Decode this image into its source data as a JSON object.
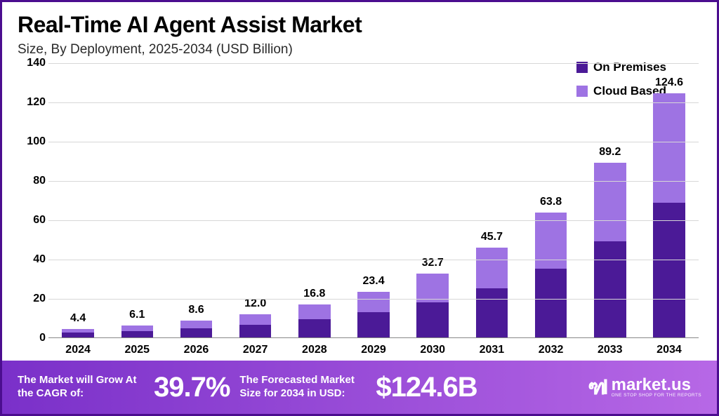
{
  "title": "Real-Time AI Agent Assist Market",
  "subtitle": "Size, By Deployment, 2025-2034 (USD Billion)",
  "chart": {
    "type": "stacked-bar",
    "ylim": [
      0,
      140
    ],
    "ytick_step": 20,
    "yticks": [
      0,
      20,
      40,
      60,
      80,
      100,
      120,
      140
    ],
    "y_fontsize": 16,
    "x_fontsize": 16,
    "grid_color": "#d7d7d7",
    "background_color": "#ffffff",
    "categories": [
      "2024",
      "2025",
      "2026",
      "2027",
      "2028",
      "2029",
      "2030",
      "2031",
      "2032",
      "2033",
      "2034"
    ],
    "totals": [
      4.4,
      6.1,
      8.6,
      12.0,
      16.8,
      23.4,
      32.7,
      45.7,
      63.8,
      89.2,
      124.6
    ],
    "total_labels": [
      "4.4",
      "6.1",
      "8.6",
      "12.0",
      "16.8",
      "23.4",
      "32.7",
      "45.7",
      "63.8",
      "89.2",
      "124.6"
    ],
    "series": [
      {
        "name": "On Premises",
        "color": "#4b1a97",
        "values": [
          2.4,
          3.4,
          4.7,
          6.6,
          9.2,
          12.9,
          18.0,
          25.2,
          35.2,
          49.2,
          68.8
        ]
      },
      {
        "name": "Cloud Based",
        "color": "#9e73e3",
        "values": [
          2.0,
          2.7,
          3.9,
          5.4,
          7.6,
          10.5,
          14.7,
          20.5,
          28.6,
          40.0,
          55.8
        ]
      }
    ],
    "bar_width_pct": 54,
    "value_label_fontsize": 16
  },
  "legend": {
    "items": [
      {
        "label": "On Premises",
        "color": "#4b1a97"
      },
      {
        "label": "Cloud Based",
        "color": "#9e73e3"
      }
    ],
    "fontsize": 17
  },
  "footer": {
    "gradient_from": "#7a30c9",
    "gradient_to": "#b768e6",
    "text_color": "#ffffff",
    "cagr_label": "The Market will Grow At the CAGR of:",
    "cagr_value": "39.7%",
    "forecast_label": "The Forecasted Market Size for 2034 in USD:",
    "forecast_value": "$124.6B",
    "logo_name": "market.us",
    "logo_tagline": "ONE STOP SHOP FOR THE REPORTS"
  },
  "border_color": "#4b0d8f"
}
